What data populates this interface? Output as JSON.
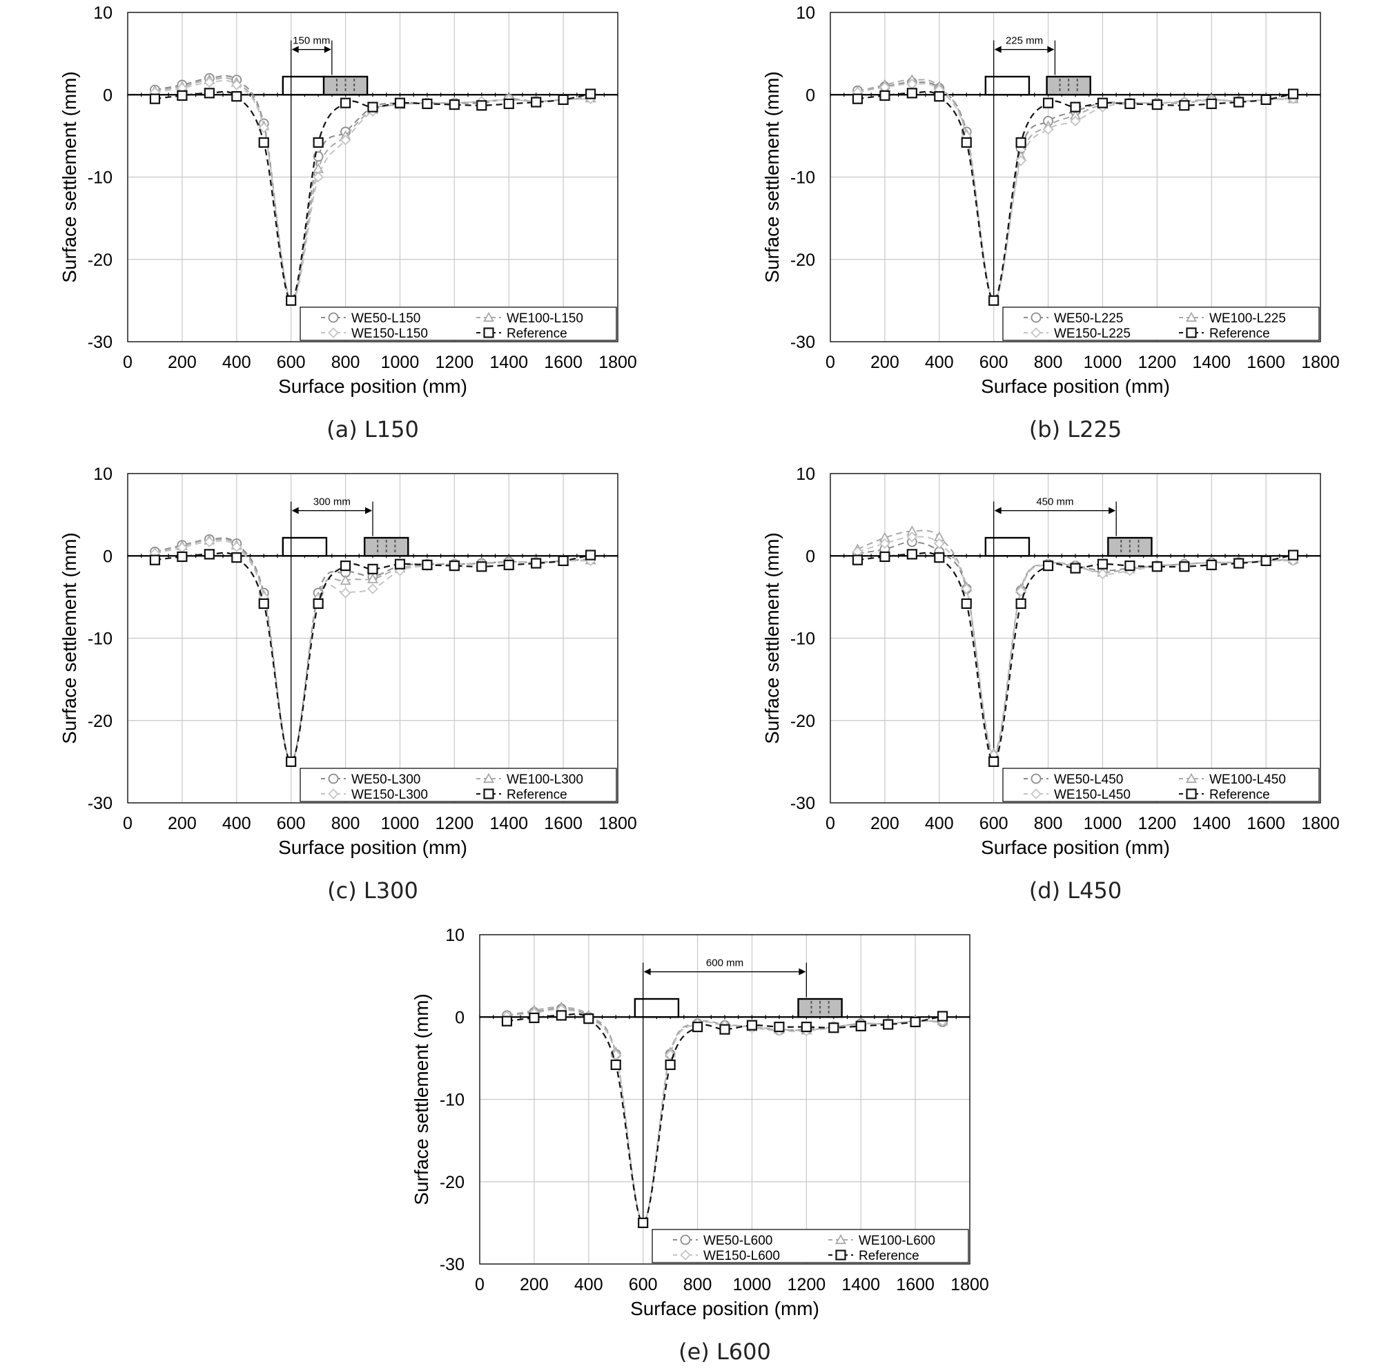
{
  "figure": {
    "panels": [
      {
        "caption": "(a) L150",
        "span_label": "150 mm",
        "span": [
          600,
          750
        ],
        "loaded_foundation_x": 750,
        "legend": [
          "WE50-L150",
          "WE100-L150",
          "WE150-L150",
          "Reference"
        ]
      },
      {
        "caption": "(b) L225",
        "span_label": "225 mm",
        "span": [
          600,
          825
        ],
        "loaded_foundation_x": 825,
        "legend": [
          "WE50-L225",
          "WE100-L225",
          "WE150-L225",
          "Reference"
        ]
      },
      {
        "caption": "(c) L300",
        "span_label": "300 mm",
        "span": [
          600,
          900
        ],
        "loaded_foundation_x": 900,
        "legend": [
          "WE50-L300",
          "WE100-L300",
          "WE150-L300",
          "Reference"
        ]
      },
      {
        "caption": "(d) L450",
        "span_label": "450 mm",
        "span": [
          600,
          1050
        ],
        "loaded_foundation_x": 1050,
        "legend": [
          "WE50-L450",
          "WE100-L450",
          "WE150-L450",
          "Reference"
        ]
      },
      {
        "caption": "(e) L600",
        "span_label": "600 mm",
        "span": [
          600,
          1200
        ],
        "loaded_foundation_x": 1200,
        "legend": [
          "WE50-L600",
          "WE100-L600",
          "WE150-L600",
          "Reference"
        ]
      }
    ]
  },
  "chart_data": [
    {
      "type": "line",
      "title": "",
      "xlabel": "Surface position (mm)",
      "ylabel": "Surface settlement (mm)",
      "xlim": [
        0,
        1800
      ],
      "ylim": [
        -30,
        10
      ],
      "xticks": [
        0,
        200,
        400,
        600,
        800,
        1000,
        1200,
        1400,
        1600,
        1800
      ],
      "yticks": [
        -30,
        -20,
        -10,
        0,
        10
      ],
      "grid": true,
      "legend_position": "bottom-right",
      "x": [
        100,
        200,
        300,
        400,
        500,
        600,
        700,
        800,
        900,
        1000,
        1100,
        1200,
        1300,
        1400,
        1500,
        1600,
        1700
      ],
      "series": [
        {
          "name": "WE50-L150",
          "values": [
            0.6,
            1.2,
            2.0,
            1.8,
            -3.5,
            -25,
            -7.5,
            -4.5,
            -1.5,
            -1.0,
            -1.0,
            -1.0,
            -1.0,
            -0.5,
            -0.8,
            -0.6,
            -0.3
          ]
        },
        {
          "name": "WE100-L150",
          "values": [
            0.5,
            1.0,
            1.8,
            1.5,
            -3.8,
            -25,
            -9.0,
            -5.0,
            -1.8,
            -1.2,
            -1.0,
            -1.0,
            -0.8,
            -0.6,
            -0.8,
            -0.6,
            -0.4
          ]
        },
        {
          "name": "WE150-L150",
          "values": [
            0.3,
            0.8,
            1.5,
            1.2,
            -4.0,
            -25,
            -10.0,
            -5.5,
            -2.0,
            -1.2,
            -1.0,
            -1.0,
            -0.8,
            -0.6,
            -0.8,
            -0.6,
            -0.5
          ]
        },
        {
          "name": "Reference",
          "values": [
            -0.5,
            -0.1,
            0.2,
            -0.2,
            -5.8,
            -25,
            -5.8,
            -1.0,
            -1.5,
            -1.0,
            -1.1,
            -1.2,
            -1.3,
            -1.1,
            -0.9,
            -0.6,
            0.1
          ]
        }
      ]
    },
    {
      "type": "line",
      "title": "",
      "xlabel": "Surface position (mm)",
      "ylabel": "Surface settlement (mm)",
      "xlim": [
        0,
        1800
      ],
      "ylim": [
        -30,
        10
      ],
      "xticks": [
        0,
        200,
        400,
        600,
        800,
        1000,
        1200,
        1400,
        1600,
        1800
      ],
      "yticks": [
        -30,
        -20,
        -10,
        0,
        10
      ],
      "grid": true,
      "legend_position": "bottom-right",
      "x": [
        100,
        200,
        300,
        400,
        500,
        600,
        700,
        800,
        900,
        1000,
        1100,
        1200,
        1300,
        1400,
        1500,
        1600,
        1700
      ],
      "series": [
        {
          "name": "WE50-L225",
          "values": [
            0.5,
            1.0,
            1.5,
            0.8,
            -4.5,
            -25,
            -6.5,
            -3.2,
            -2.0,
            -1.0,
            -1.0,
            -1.0,
            -1.0,
            -0.6,
            -0.8,
            -0.6,
            -0.4
          ]
        },
        {
          "name": "WE100-L225",
          "values": [
            0.4,
            1.2,
            1.8,
            1.0,
            -4.8,
            -25,
            -7.5,
            -3.8,
            -2.5,
            -1.2,
            -1.0,
            -1.0,
            -0.8,
            -0.6,
            -0.8,
            -0.6,
            -0.5
          ]
        },
        {
          "name": "WE150-L225",
          "values": [
            0.3,
            0.9,
            1.3,
            0.6,
            -5.0,
            -25,
            -8.0,
            -4.2,
            -3.2,
            -1.5,
            -1.1,
            -1.0,
            -0.9,
            -0.7,
            -0.8,
            -0.6,
            -0.5
          ]
        },
        {
          "name": "Reference",
          "values": [
            -0.5,
            -0.1,
            0.2,
            -0.2,
            -5.8,
            -25,
            -5.8,
            -1.0,
            -1.5,
            -1.0,
            -1.1,
            -1.2,
            -1.3,
            -1.1,
            -0.9,
            -0.6,
            0.1
          ]
        }
      ]
    },
    {
      "type": "line",
      "title": "",
      "xlabel": "Surface position (mm)",
      "ylabel": "Surface settlement (mm)",
      "xlim": [
        0,
        1800
      ],
      "ylim": [
        -30,
        10
      ],
      "xticks": [
        0,
        200,
        400,
        600,
        800,
        1000,
        1200,
        1400,
        1600,
        1800
      ],
      "yticks": [
        -30,
        -20,
        -10,
        0,
        10
      ],
      "grid": true,
      "legend_position": "bottom-right",
      "x": [
        100,
        200,
        300,
        400,
        500,
        600,
        700,
        800,
        900,
        1000,
        1100,
        1200,
        1300,
        1400,
        1500,
        1600,
        1700
      ],
      "series": [
        {
          "name": "WE50-L300",
          "values": [
            0.5,
            1.3,
            2.0,
            1.5,
            -4.5,
            -25,
            -4.5,
            -2.0,
            -2.5,
            -1.2,
            -1.0,
            -1.0,
            -0.9,
            -0.7,
            -0.8,
            -0.6,
            -0.4
          ]
        },
        {
          "name": "WE100-L300",
          "values": [
            0.4,
            1.2,
            1.9,
            1.3,
            -4.8,
            -25,
            -5.0,
            -3.0,
            -2.8,
            -1.5,
            -1.1,
            -1.0,
            -0.9,
            -0.7,
            -0.8,
            -0.6,
            -0.5
          ]
        },
        {
          "name": "WE150-L300",
          "values": [
            0.3,
            1.0,
            1.7,
            1.1,
            -5.0,
            -25,
            -5.2,
            -4.5,
            -4.0,
            -1.8,
            -1.2,
            -1.1,
            -1.0,
            -0.8,
            -0.8,
            -0.6,
            -0.6
          ]
        },
        {
          "name": "Reference",
          "values": [
            -0.5,
            -0.1,
            0.2,
            -0.2,
            -5.8,
            -25,
            -5.8,
            -1.2,
            -1.6,
            -1.0,
            -1.1,
            -1.2,
            -1.3,
            -1.1,
            -0.9,
            -0.6,
            0.1
          ]
        }
      ]
    },
    {
      "type": "line",
      "title": "",
      "xlabel": "Surface position (mm)",
      "ylabel": "Surface settlement (mm)",
      "xlim": [
        0,
        1800
      ],
      "ylim": [
        -30,
        10
      ],
      "xticks": [
        0,
        200,
        400,
        600,
        800,
        1000,
        1200,
        1400,
        1600,
        1800
      ],
      "yticks": [
        -30,
        -20,
        -10,
        0,
        10
      ],
      "grid": true,
      "legend_position": "bottom-right",
      "x": [
        100,
        200,
        300,
        400,
        500,
        600,
        700,
        800,
        900,
        1000,
        1100,
        1200,
        1300,
        1400,
        1500,
        1600,
        1700
      ],
      "series": [
        {
          "name": "WE50-L450",
          "values": [
            0.3,
            0.8,
            1.7,
            0.5,
            -4.0,
            -24.5,
            -4.2,
            -1.0,
            -1.2,
            -1.8,
            -1.5,
            -1.2,
            -1.0,
            -0.8,
            -0.8,
            -0.6,
            -0.5
          ]
        },
        {
          "name": "WE100-L450",
          "values": [
            0.8,
            2.2,
            3.0,
            2.3,
            -3.8,
            -24,
            -4.0,
            -1.0,
            -1.3,
            -2.0,
            -1.6,
            -1.2,
            -1.0,
            -0.8,
            -0.8,
            -0.6,
            -0.4
          ]
        },
        {
          "name": "WE150-L450",
          "values": [
            0.5,
            1.5,
            2.3,
            1.5,
            -4.0,
            -24.2,
            -4.3,
            -1.0,
            -1.2,
            -2.2,
            -1.8,
            -1.3,
            -1.1,
            -0.8,
            -0.8,
            -0.6,
            -0.6
          ]
        },
        {
          "name": "Reference",
          "values": [
            -0.5,
            -0.1,
            0.2,
            -0.2,
            -5.8,
            -25,
            -5.8,
            -1.2,
            -1.5,
            -1.0,
            -1.2,
            -1.3,
            -1.3,
            -1.1,
            -0.9,
            -0.6,
            0.1
          ]
        }
      ]
    },
    {
      "type": "line",
      "title": "",
      "xlabel": "Surface position (mm)",
      "ylabel": "Surface settlement (mm)",
      "xlim": [
        0,
        1800
      ],
      "ylim": [
        -30,
        10
      ],
      "xticks": [
        0,
        200,
        400,
        600,
        800,
        1000,
        1200,
        1400,
        1600,
        1800
      ],
      "yticks": [
        -30,
        -20,
        -10,
        0,
        10
      ],
      "grid": true,
      "legend_position": "bottom-right",
      "x": [
        100,
        200,
        300,
        400,
        500,
        600,
        700,
        800,
        900,
        1000,
        1100,
        1200,
        1300,
        1400,
        1500,
        1600,
        1700
      ],
      "series": [
        {
          "name": "WE50-L600",
          "values": [
            0.2,
            0.6,
            1.0,
            0.0,
            -4.5,
            -25,
            -4.5,
            -0.8,
            -1.0,
            -1.2,
            -1.6,
            -1.5,
            -1.2,
            -0.8,
            -0.8,
            -0.5,
            -0.6
          ]
        },
        {
          "name": "WE100-L600",
          "values": [
            0.2,
            0.8,
            1.2,
            0.2,
            -4.3,
            -25,
            -4.3,
            -0.7,
            -0.9,
            -1.2,
            -1.5,
            -1.6,
            -1.2,
            -0.8,
            -0.8,
            -0.5,
            -0.5
          ]
        },
        {
          "name": "WE150-L600",
          "values": [
            0.1,
            0.5,
            0.9,
            -0.1,
            -4.6,
            -25,
            -4.6,
            -0.8,
            -1.0,
            -1.3,
            -1.7,
            -1.7,
            -1.3,
            -0.9,
            -0.8,
            -0.5,
            -0.5
          ]
        },
        {
          "name": "Reference",
          "values": [
            -0.5,
            -0.1,
            0.2,
            -0.2,
            -5.8,
            -25,
            -5.8,
            -1.2,
            -1.5,
            -1.0,
            -1.2,
            -1.2,
            -1.3,
            -1.1,
            -0.9,
            -0.6,
            0.1
          ]
        }
      ]
    }
  ]
}
